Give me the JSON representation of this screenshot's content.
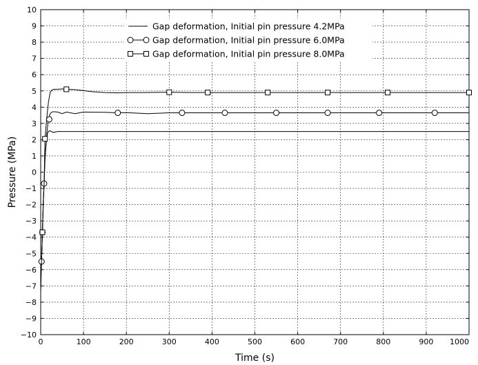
{
  "chart_data": {
    "type": "line",
    "title": "",
    "xlabel": "Time (s)",
    "ylabel": "Pressure (MPa)",
    "xlim": [
      0,
      1000
    ],
    "ylim": [
      -10,
      10
    ],
    "xticks": [
      0,
      100,
      200,
      300,
      400,
      500,
      600,
      700,
      800,
      900,
      1000
    ],
    "yticks": [
      -10,
      -9,
      -8,
      -7,
      -6,
      -5,
      -4,
      -3,
      -2,
      -1,
      0,
      1,
      2,
      3,
      4,
      5,
      6,
      7,
      8,
      9,
      10
    ],
    "grid": true,
    "legend_position": "top-center",
    "series": [
      {
        "name": "Gap deformation, Initial pin pressure 4.2MPa",
        "marker": "none",
        "x": [
          0,
          2,
          4,
          6,
          8,
          10,
          13,
          16,
          20,
          25,
          30,
          40,
          50,
          60,
          100,
          200,
          300,
          400,
          500,
          600,
          700,
          800,
          900,
          1000
        ],
        "y": [
          -7.5,
          -5.5,
          -3.8,
          -2.0,
          -0.5,
          0.8,
          1.8,
          2.4,
          2.55,
          2.5,
          2.45,
          2.5,
          2.5,
          2.5,
          2.5,
          2.5,
          2.5,
          2.5,
          2.5,
          2.5,
          2.5,
          2.5,
          2.5,
          2.5
        ]
      },
      {
        "name": "Gap deformation, Initial pin pressure 6.0MPa",
        "marker": "circle",
        "x": [
          0,
          2,
          4,
          6,
          8,
          10,
          14,
          18,
          22,
          26,
          30,
          40,
          50,
          60,
          80,
          100,
          150,
          180,
          200,
          250,
          300,
          330,
          430,
          550,
          670,
          790,
          920,
          1000
        ],
        "y": [
          -6.8,
          -5.5,
          -3.7,
          -2.0,
          -0.7,
          0.8,
          2.3,
          3.25,
          3.6,
          3.7,
          3.72,
          3.7,
          3.6,
          3.7,
          3.6,
          3.7,
          3.68,
          3.65,
          3.66,
          3.6,
          3.65,
          3.65,
          3.65,
          3.65,
          3.65,
          3.65,
          3.65,
          3.65
        ],
        "marker_x": [
          2,
          4,
          8,
          20,
          180,
          330,
          430,
          550,
          670,
          790,
          920
        ],
        "marker_y": [
          -5.5,
          -3.7,
          -0.7,
          3.25,
          3.65,
          3.65,
          3.65,
          3.65,
          3.65,
          3.65,
          3.65
        ]
      },
      {
        "name": "Gap deformation, Initial pin pressure 8.0MPa",
        "marker": "square",
        "x": [
          0,
          2,
          4,
          6,
          8,
          10,
          14,
          18,
          22,
          26,
          30,
          40,
          50,
          60,
          80,
          100,
          120,
          150,
          180,
          200,
          240,
          300,
          350,
          390,
          450,
          530,
          600,
          670,
          750,
          810,
          900,
          1000
        ],
        "y": [
          -6.5,
          -5.5,
          -3.7,
          -1.8,
          -0.7,
          2.05,
          3.3,
          4.3,
          4.9,
          5.05,
          5.1,
          5.1,
          5.12,
          5.1,
          5.08,
          5.02,
          4.95,
          4.9,
          4.88,
          4.9,
          4.9,
          4.92,
          4.9,
          4.9,
          4.9,
          4.9,
          4.9,
          4.9,
          4.9,
          4.9,
          4.9,
          4.9
        ],
        "marker_x": [
          4,
          10,
          60,
          300,
          390,
          530,
          670,
          810,
          1000
        ],
        "marker_y": [
          -3.7,
          2.05,
          5.1,
          4.92,
          4.9,
          4.9,
          4.9,
          4.9,
          4.9
        ]
      }
    ]
  }
}
